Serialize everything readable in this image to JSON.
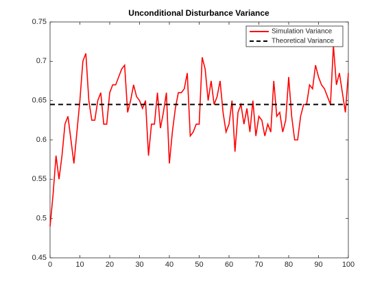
{
  "chart_data": {
    "type": "line",
    "title": "Unconditional Disturbance Variance",
    "series": [
      {
        "name": "Simulation Variance",
        "color": "#ff0000",
        "style": "solid",
        "x": [
          0,
          1,
          2,
          3,
          4,
          5,
          6,
          7,
          8,
          9,
          10,
          11,
          12,
          13,
          14,
          15,
          16,
          17,
          18,
          19,
          20,
          21,
          22,
          23,
          24,
          25,
          26,
          27,
          28,
          29,
          30,
          31,
          32,
          33,
          34,
          35,
          36,
          37,
          38,
          39,
          40,
          41,
          42,
          43,
          44,
          45,
          46,
          47,
          48,
          49,
          50,
          51,
          52,
          53,
          54,
          55,
          56,
          57,
          58,
          59,
          60,
          61,
          62,
          63,
          64,
          65,
          66,
          67,
          68,
          69,
          70,
          71,
          72,
          73,
          74,
          75,
          76,
          77,
          78,
          79,
          80,
          81,
          82,
          83,
          84,
          85,
          86,
          87,
          88,
          89,
          90,
          91,
          92,
          93,
          94,
          95,
          96,
          97,
          98,
          99,
          100
        ],
        "values": [
          0.49,
          0.53,
          0.58,
          0.55,
          0.58,
          0.62,
          0.63,
          0.6,
          0.57,
          0.61,
          0.65,
          0.7,
          0.71,
          0.65,
          0.625,
          0.625,
          0.65,
          0.66,
          0.62,
          0.62,
          0.66,
          0.67,
          0.67,
          0.68,
          0.69,
          0.695,
          0.635,
          0.65,
          0.67,
          0.655,
          0.65,
          0.64,
          0.65,
          0.58,
          0.62,
          0.62,
          0.66,
          0.615,
          0.635,
          0.66,
          0.57,
          0.61,
          0.64,
          0.66,
          0.66,
          0.665,
          0.685,
          0.605,
          0.61,
          0.62,
          0.62,
          0.705,
          0.69,
          0.65,
          0.675,
          0.645,
          0.655,
          0.675,
          0.635,
          0.61,
          0.62,
          0.65,
          0.585,
          0.635,
          0.645,
          0.62,
          0.64,
          0.61,
          0.65,
          0.605,
          0.63,
          0.625,
          0.605,
          0.62,
          0.61,
          0.675,
          0.63,
          0.635,
          0.61,
          0.625,
          0.68,
          0.63,
          0.6,
          0.6,
          0.63,
          0.645,
          0.645,
          0.67,
          0.665,
          0.695,
          0.68,
          0.67,
          0.665,
          0.655,
          0.645,
          0.72,
          0.67,
          0.685,
          0.66,
          0.635,
          0.685
        ]
      },
      {
        "name": "Theoretical Variance",
        "color": "#000000",
        "style": "dashed",
        "x": [
          0,
          100
        ],
        "values": [
          0.645,
          0.645
        ]
      }
    ],
    "xlim": [
      0,
      100
    ],
    "xticks": [
      0,
      10,
      20,
      30,
      40,
      50,
      60,
      70,
      80,
      90,
      100
    ],
    "ylim": [
      0.45,
      0.75
    ],
    "yticks": [
      0.45,
      0.5,
      0.55,
      0.6,
      0.65,
      0.7,
      0.75
    ],
    "grid": false,
    "legend": "top-right"
  }
}
